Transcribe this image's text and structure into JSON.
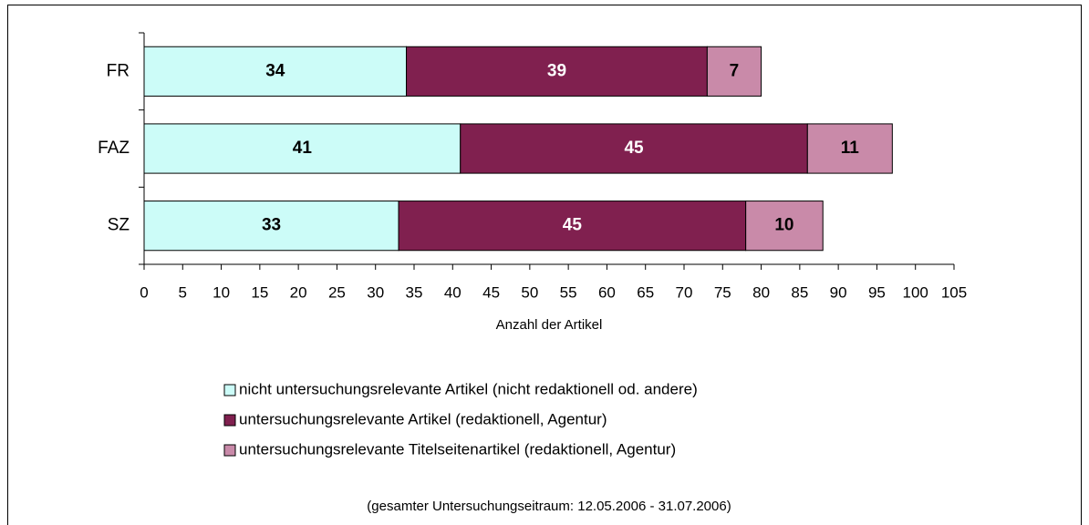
{
  "chart_data": {
    "type": "stacked-barh",
    "categories": [
      "FR",
      "FAZ",
      "SZ"
    ],
    "series": [
      {
        "name": "nicht untersuchungsrelevante Artikel (nicht redaktionell od. andere)",
        "color": "#ccfcf8",
        "label_color": "#000000",
        "values": [
          34,
          41,
          33
        ]
      },
      {
        "name": "untersuchungsrelevante Artikel (redaktionell, Agentur)",
        "color": "#80204f",
        "label_color": "#ffffff",
        "values": [
          39,
          45,
          45
        ]
      },
      {
        "name": "untersuchungsrelevante Titelseitenartikel (redaktionell, Agentur)",
        "color": "#c98aa9",
        "label_color": "#000000",
        "values": [
          7,
          11,
          10
        ]
      }
    ],
    "xlabel": "Anzahl der Artikel",
    "xlim": [
      0,
      105
    ],
    "xticks": [
      0,
      5,
      10,
      15,
      20,
      25,
      30,
      35,
      40,
      45,
      50,
      55,
      60,
      65,
      70,
      75,
      80,
      85,
      90,
      95,
      100,
      105
    ],
    "note": "(gesamter Untersuchungseitraum: 12.05.2006 - 31.07.2006)"
  }
}
